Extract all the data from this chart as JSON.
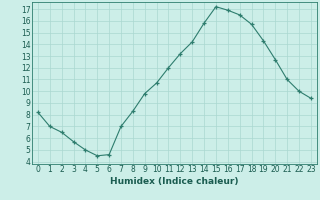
{
  "x": [
    0,
    1,
    2,
    3,
    4,
    5,
    6,
    7,
    8,
    9,
    10,
    11,
    12,
    13,
    14,
    15,
    16,
    17,
    18,
    19,
    20,
    21,
    22,
    23
  ],
  "y": [
    8.2,
    7.0,
    6.5,
    5.7,
    5.0,
    4.5,
    4.6,
    7.0,
    8.3,
    9.8,
    10.7,
    12.0,
    13.2,
    14.2,
    15.8,
    17.2,
    16.9,
    16.5,
    15.7,
    14.3,
    12.7,
    11.0,
    10.0,
    9.4
  ],
  "xlabel": "Humidex (Indice chaleur)",
  "xlim": [
    -0.5,
    23.5
  ],
  "ylim": [
    3.8,
    17.6
  ],
  "yticks": [
    4,
    5,
    6,
    7,
    8,
    9,
    10,
    11,
    12,
    13,
    14,
    15,
    16,
    17
  ],
  "xticks": [
    0,
    1,
    2,
    3,
    4,
    5,
    6,
    7,
    8,
    9,
    10,
    11,
    12,
    13,
    14,
    15,
    16,
    17,
    18,
    19,
    20,
    21,
    22,
    23
  ],
  "line_color": "#2e7d6e",
  "marker_color": "#2e7d6e",
  "bg_color": "#cceee8",
  "grid_color": "#aad8d0",
  "axis_color": "#2e7d6e",
  "label_color": "#1a5c50",
  "tick_fontsize": 5.5,
  "xlabel_fontsize": 6.5
}
